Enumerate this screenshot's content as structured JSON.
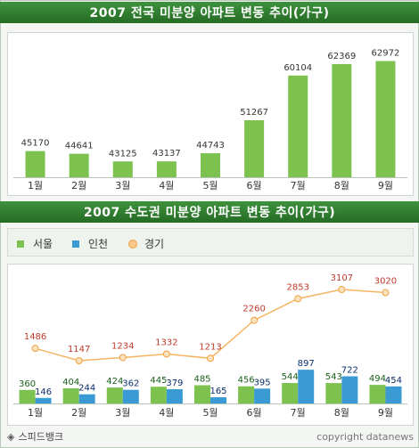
{
  "chart_data": [
    {
      "type": "bar",
      "title": "2007 전국 미분양 아파트 변동 추이(가구)",
      "categories": [
        "1월",
        "2월",
        "3월",
        "4월",
        "5월",
        "6월",
        "7월",
        "8월",
        "9월"
      ],
      "values": [
        45170,
        44641,
        43125,
        43137,
        44743,
        51267,
        60104,
        62369,
        62972
      ],
      "ylim": [
        40000,
        65000
      ],
      "colors": {
        "bar": "#7dc14e"
      }
    },
    {
      "type": "bar",
      "title": "2007 수도권 미분양 아파트 변동 추이(가구)",
      "categories": [
        "1월",
        "2월",
        "3월",
        "4월",
        "5월",
        "6월",
        "7월",
        "8월",
        "9월"
      ],
      "series": [
        {
          "name": "서울",
          "type": "bar",
          "values": [
            360,
            404,
            424,
            445,
            485,
            456,
            544,
            543,
            494
          ],
          "color": "#7dc14e",
          "label_color": "#1a5e1a"
        },
        {
          "name": "인천",
          "type": "bar",
          "values": [
            146,
            244,
            362,
            379,
            165,
            395,
            897,
            722,
            454
          ],
          "color": "#3a9bd4",
          "label_color": "#0b2d6b"
        },
        {
          "name": "경기",
          "type": "line",
          "values": [
            1486,
            1147,
            1234,
            1332,
            1213,
            2260,
            2853,
            3107,
            3020
          ],
          "color": "#f5b461",
          "label_color": "#c0392b"
        }
      ],
      "legend": "top-left"
    }
  ],
  "footer": {
    "source": "스피드뱅크",
    "source_icon": "diamond-icon",
    "copyright": "copyright datanews"
  }
}
